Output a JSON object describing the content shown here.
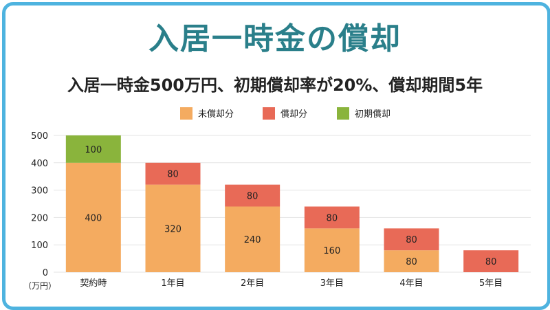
{
  "title": "入居一時金の償却",
  "subtitle": "入居一時金500万円、初期償却率が20%、償却期間5年",
  "unit_label": "（万円）",
  "colors": {
    "frame": "#4eb3df",
    "title": "#2a7f8a",
    "unamortized": "#f4ab60",
    "amortized": "#e86a57",
    "initial": "#8ab43c",
    "grid": "#e3e3e3"
  },
  "chart_data": {
    "type": "bar",
    "stacked": true,
    "categories": [
      "契約時",
      "1年目",
      "2年目",
      "3年目",
      "4年目",
      "5年目"
    ],
    "series": [
      {
        "name": "未償却分",
        "values": [
          400,
          320,
          240,
          160,
          80,
          0
        ]
      },
      {
        "name": "償却分",
        "values": [
          0,
          80,
          80,
          80,
          80,
          80
        ]
      },
      {
        "name": "初期償却",
        "values": [
          100,
          0,
          0,
          0,
          0,
          0
        ]
      }
    ],
    "ylim": [
      0,
      500
    ],
    "yticks": [
      0,
      100,
      200,
      300,
      400,
      500
    ],
    "grid": true,
    "legend": "top-center"
  }
}
